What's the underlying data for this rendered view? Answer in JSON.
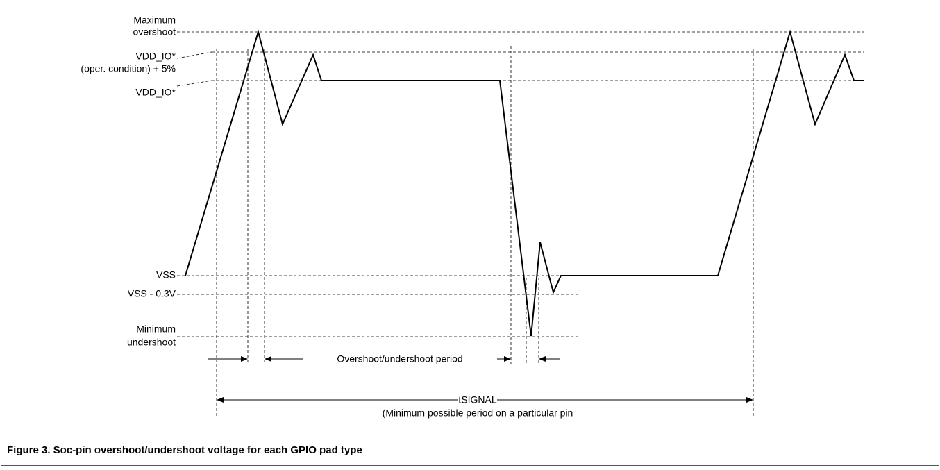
{
  "labels": {
    "max_overshoot": [
      "Maximum",
      "overshoot"
    ],
    "vdd_plus": [
      "VDD_IO*",
      "(oper. condition) + 5%"
    ],
    "vdd": "VDD_IO*",
    "vss": "VSS",
    "vss_minus": "VSS - 0.3V",
    "min_undershoot": [
      "Minimum",
      "undershoot"
    ],
    "period": "Overshoot/undershoot period",
    "tsignal": "tSIGNAL",
    "tsignal_note": "(Minimum possible period on a particular pin"
  },
  "caption": "Figure 3. Soc-pin overshoot/undershoot voltage for each GPIO pad type"
}
